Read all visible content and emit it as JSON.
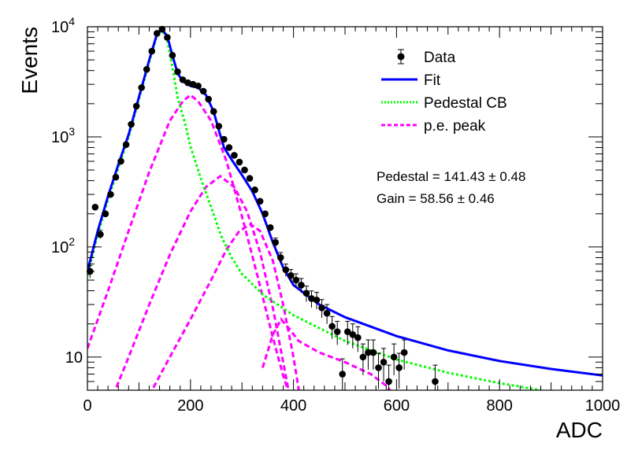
{
  "chart_data": {
    "type": "line",
    "xlabel": "ADC",
    "ylabel": "Events",
    "xlim": [
      0,
      1000
    ],
    "ylim": [
      5,
      10000
    ],
    "y_scale": "log",
    "grid": false,
    "legend_position": "top-right",
    "x_ticks": [
      0,
      200,
      400,
      600,
      800,
      1000
    ],
    "x_tick_labels": [
      "0",
      "200",
      "400",
      "600",
      "800",
      "1000"
    ],
    "y_ticks": [
      10,
      100,
      1000,
      10000
    ],
    "y_tick_labels": [
      "10",
      "10",
      "10",
      "10"
    ],
    "y_tick_exponents": [
      "",
      "2",
      "3",
      "4"
    ],
    "legend": [
      {
        "label": "Data",
        "color": "#000000",
        "style": "marker"
      },
      {
        "label": "Fit",
        "color": "#0000ff",
        "style": "solid"
      },
      {
        "label": "Pedestal CB",
        "color": "#00ff00",
        "style": "dotted"
      },
      {
        "label": "p.e. peak",
        "color": "#ff00ff",
        "style": "dashed"
      }
    ],
    "annotations": [
      {
        "text": "Pedestal = 141.43",
        "pm": "±",
        "value": "0.48"
      },
      {
        "text": "Gain = 58.56",
        "pm": "±",
        "value": "0.46"
      }
    ],
    "series": [
      {
        "name": "Data",
        "color": "#000000",
        "marker": "circle",
        "points": [
          {
            "x": 5,
            "y": 60
          },
          {
            "x": 15,
            "y": 230
          },
          {
            "x": 25,
            "y": 130
          },
          {
            "x": 35,
            "y": 200
          },
          {
            "x": 45,
            "y": 300
          },
          {
            "x": 55,
            "y": 430
          },
          {
            "x": 65,
            "y": 600
          },
          {
            "x": 75,
            "y": 850
          },
          {
            "x": 85,
            "y": 1300
          },
          {
            "x": 95,
            "y": 1900
          },
          {
            "x": 105,
            "y": 2800
          },
          {
            "x": 115,
            "y": 4100
          },
          {
            "x": 125,
            "y": 6000
          },
          {
            "x": 135,
            "y": 8700
          },
          {
            "x": 145,
            "y": 9500
          },
          {
            "x": 155,
            "y": 8000
          },
          {
            "x": 165,
            "y": 5500
          },
          {
            "x": 175,
            "y": 3900
          },
          {
            "x": 185,
            "y": 3300
          },
          {
            "x": 195,
            "y": 3100
          },
          {
            "x": 205,
            "y": 3000
          },
          {
            "x": 215,
            "y": 2900
          },
          {
            "x": 225,
            "y": 2600
          },
          {
            "x": 235,
            "y": 2200
          },
          {
            "x": 245,
            "y": 1700
          },
          {
            "x": 255,
            "y": 1250
          },
          {
            "x": 265,
            "y": 950
          },
          {
            "x": 275,
            "y": 800
          },
          {
            "x": 285,
            "y": 680
          },
          {
            "x": 295,
            "y": 590
          },
          {
            "x": 305,
            "y": 500
          },
          {
            "x": 315,
            "y": 420
          },
          {
            "x": 325,
            "y": 330
          },
          {
            "x": 335,
            "y": 260
          },
          {
            "x": 345,
            "y": 200
          },
          {
            "x": 355,
            "y": 150
          },
          {
            "x": 365,
            "y": 110
          },
          {
            "x": 375,
            "y": 80
          },
          {
            "x": 385,
            "y": 62
          },
          {
            "x": 395,
            "y": 55
          },
          {
            "x": 405,
            "y": 50
          },
          {
            "x": 415,
            "y": 45
          },
          {
            "x": 425,
            "y": 38
          },
          {
            "x": 435,
            "y": 34
          },
          {
            "x": 445,
            "y": 33
          },
          {
            "x": 455,
            "y": 28
          },
          {
            "x": 465,
            "y": 25
          },
          {
            "x": 475,
            "y": 19
          },
          {
            "x": 485,
            "y": 17
          },
          {
            "x": 495,
            "y": 7
          },
          {
            "x": 505,
            "y": 17
          },
          {
            "x": 515,
            "y": 16
          },
          {
            "x": 525,
            "y": 15
          },
          {
            "x": 535,
            "y": 10
          },
          {
            "x": 545,
            "y": 11
          },
          {
            "x": 555,
            "y": 11
          },
          {
            "x": 565,
            "y": 8
          },
          {
            "x": 575,
            "y": 9
          },
          {
            "x": 585,
            "y": 6
          },
          {
            "x": 595,
            "y": 10
          },
          {
            "x": 605,
            "y": 8
          },
          {
            "x": 615,
            "y": 11
          },
          {
            "x": 675,
            "y": 6
          }
        ]
      },
      {
        "name": "Fit",
        "color": "#0000ff",
        "style": "solid",
        "points": [
          {
            "x": 0,
            "y": 60
          },
          {
            "x": 20,
            "y": 140
          },
          {
            "x": 40,
            "y": 290
          },
          {
            "x": 60,
            "y": 560
          },
          {
            "x": 80,
            "y": 1050
          },
          {
            "x": 100,
            "y": 2300
          },
          {
            "x": 120,
            "y": 5000
          },
          {
            "x": 135,
            "y": 8600
          },
          {
            "x": 145,
            "y": 9500
          },
          {
            "x": 155,
            "y": 8200
          },
          {
            "x": 165,
            "y": 5500
          },
          {
            "x": 175,
            "y": 3800
          },
          {
            "x": 185,
            "y": 3200
          },
          {
            "x": 200,
            "y": 2900
          },
          {
            "x": 215,
            "y": 2800
          },
          {
            "x": 230,
            "y": 2400
          },
          {
            "x": 245,
            "y": 1700
          },
          {
            "x": 255,
            "y": 1150
          },
          {
            "x": 265,
            "y": 800
          },
          {
            "x": 280,
            "y": 620
          },
          {
            "x": 300,
            "y": 450
          },
          {
            "x": 320,
            "y": 320
          },
          {
            "x": 340,
            "y": 200
          },
          {
            "x": 360,
            "y": 110
          },
          {
            "x": 380,
            "y": 65
          },
          {
            "x": 400,
            "y": 45
          },
          {
            "x": 450,
            "y": 30
          },
          {
            "x": 500,
            "y": 23
          },
          {
            "x": 600,
            "y": 15.5
          },
          {
            "x": 700,
            "y": 11.5
          },
          {
            "x": 800,
            "y": 9.2
          },
          {
            "x": 900,
            "y": 7.8
          },
          {
            "x": 1000,
            "y": 6.8
          }
        ]
      },
      {
        "name": "Pedestal CB",
        "color": "#00ff00",
        "style": "dotted",
        "points": [
          {
            "x": 0,
            "y": 55
          },
          {
            "x": 20,
            "y": 130
          },
          {
            "x": 40,
            "y": 270
          },
          {
            "x": 60,
            "y": 520
          },
          {
            "x": 80,
            "y": 1000
          },
          {
            "x": 100,
            "y": 2200
          },
          {
            "x": 120,
            "y": 4800
          },
          {
            "x": 135,
            "y": 8400
          },
          {
            "x": 145,
            "y": 9300
          },
          {
            "x": 155,
            "y": 7500
          },
          {
            "x": 165,
            "y": 4300
          },
          {
            "x": 175,
            "y": 2300
          },
          {
            "x": 190,
            "y": 1300
          },
          {
            "x": 200,
            "y": 820
          },
          {
            "x": 220,
            "y": 420
          },
          {
            "x": 240,
            "y": 230
          },
          {
            "x": 260,
            "y": 125
          },
          {
            "x": 280,
            "y": 80
          },
          {
            "x": 300,
            "y": 57
          },
          {
            "x": 340,
            "y": 37
          },
          {
            "x": 400,
            "y": 24
          },
          {
            "x": 500,
            "y": 14
          },
          {
            "x": 600,
            "y": 9.5
          },
          {
            "x": 700,
            "y": 7.2
          },
          {
            "x": 800,
            "y": 5.8
          },
          {
            "x": 880,
            "y": 5
          }
        ]
      },
      {
        "name": "p.e. peak",
        "color": "#ff00ff",
        "style": "dashed",
        "peaks": [
          {
            "center": 200,
            "height": 2400,
            "points": [
              {
                "x": 0,
                "y": 12
              },
              {
                "x": 40,
                "y": 40
              },
              {
                "x": 80,
                "y": 140
              },
              {
                "x": 120,
                "y": 480
              },
              {
                "x": 160,
                "y": 1400
              },
              {
                "x": 185,
                "y": 2100
              },
              {
                "x": 200,
                "y": 2400
              },
              {
                "x": 215,
                "y": 2100
              },
              {
                "x": 240,
                "y": 1400
              },
              {
                "x": 270,
                "y": 600
              },
              {
                "x": 300,
                "y": 190
              },
              {
                "x": 330,
                "y": 55
              },
              {
                "x": 360,
                "y": 15
              },
              {
                "x": 380,
                "y": 6.8
              },
              {
                "x": 392,
                "y": 4.5
              }
            ]
          },
          {
            "center": 258,
            "height": 440,
            "points": [
              {
                "x": 50,
                "y": 4.5
              },
              {
                "x": 80,
                "y": 10
              },
              {
                "x": 120,
                "y": 30
              },
              {
                "x": 160,
                "y": 85
              },
              {
                "x": 200,
                "y": 210
              },
              {
                "x": 230,
                "y": 350
              },
              {
                "x": 258,
                "y": 440
              },
              {
                "x": 285,
                "y": 350
              },
              {
                "x": 310,
                "y": 210
              },
              {
                "x": 335,
                "y": 90
              },
              {
                "x": 360,
                "y": 28
              },
              {
                "x": 380,
                "y": 9
              },
              {
                "x": 392,
                "y": 4.5
              }
            ]
          },
          {
            "center": 317,
            "height": 160,
            "points": [
              {
                "x": 120,
                "y": 4.5
              },
              {
                "x": 160,
                "y": 10
              },
              {
                "x": 200,
                "y": 22
              },
              {
                "x": 240,
                "y": 50
              },
              {
                "x": 270,
                "y": 95
              },
              {
                "x": 295,
                "y": 140
              },
              {
                "x": 317,
                "y": 160
              },
              {
                "x": 335,
                "y": 140
              },
              {
                "x": 360,
                "y": 75
              },
              {
                "x": 380,
                "y": 30
              },
              {
                "x": 400,
                "y": 10
              },
              {
                "x": 412,
                "y": 4.5
              }
            ]
          },
          {
            "center": 376,
            "height": 22,
            "points": [
              {
                "x": 340,
                "y": 8
              },
              {
                "x": 360,
                "y": 16
              },
              {
                "x": 376,
                "y": 22
              },
              {
                "x": 392,
                "y": 18
              },
              {
                "x": 410,
                "y": 14
              },
              {
                "x": 450,
                "y": 11
              },
              {
                "x": 500,
                "y": 9
              },
              {
                "x": 550,
                "y": 7
              },
              {
                "x": 580,
                "y": 5.5
              },
              {
                "x": 595,
                "y": 4.5
              }
            ]
          }
        ]
      }
    ]
  }
}
